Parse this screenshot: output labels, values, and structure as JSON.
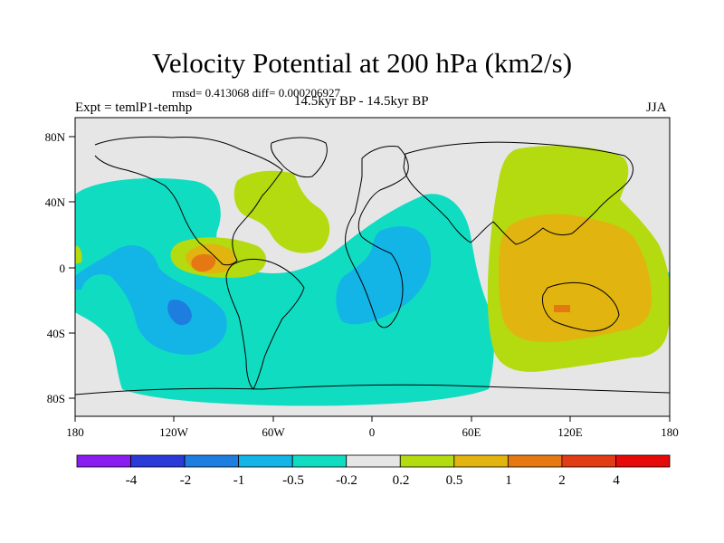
{
  "header": {
    "title": "Velocity Potential at 200 hPa (km2/s)",
    "stats": "rmsd= 0.413068 diff= 0.000206927",
    "experiment": "Expt = temlP1-temhp",
    "period": "14.5kyr BP - 14.5kyr BP",
    "season": "JJA"
  },
  "map": {
    "lat_labels": [
      "80N",
      "40N",
      "0",
      "40S",
      "80S"
    ],
    "lon_labels": [
      "180",
      "120W",
      "60W",
      "0",
      "60E",
      "120E",
      "180"
    ]
  },
  "colorbar": {
    "labels": [
      "-4",
      "-2",
      "-1",
      "-0.5",
      "-0.2",
      "0.2",
      "0.5",
      "1",
      "2",
      "4"
    ],
    "colors": [
      "#8a1ef0",
      "#2a3ad8",
      "#1e7ee0",
      "#13b4e6",
      "#10dcc2",
      "#e6e6e6",
      "#b4da10",
      "#e2b410",
      "#e67814",
      "#e13c14",
      "#e60a0a"
    ]
  }
}
